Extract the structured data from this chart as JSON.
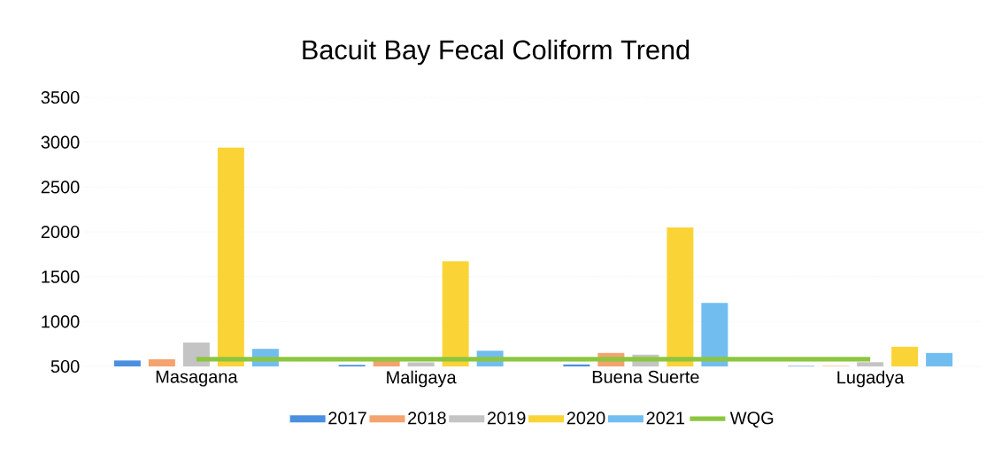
{
  "chart_data": {
    "type": "bar",
    "title": "Bacuit Bay Fecal Coliform Trend",
    "categories": [
      "Masagana",
      "Maligaya",
      "Buena Suerte",
      "Lugadya"
    ],
    "series": [
      {
        "name": "2017",
        "color": "#4a8fe0",
        "values": [
          566,
          517,
          522,
          505
        ]
      },
      {
        "name": "2018",
        "color": "#f4a26e",
        "values": [
          580,
          585,
          650,
          505
        ]
      },
      {
        "name": "2019",
        "color": "#c4c4c4",
        "values": [
          766,
          545,
          631,
          547
        ]
      },
      {
        "name": "2020",
        "color": "#fad437",
        "values": [
          2941,
          1671,
          2049,
          719
        ]
      },
      {
        "name": "2021",
        "color": "#72bdf0",
        "values": [
          696,
          675,
          1209,
          650
        ]
      },
      {
        "name": "WQG",
        "type": "line",
        "color": "#8cc63f",
        "values": [
          580,
          580,
          580,
          580
        ]
      }
    ],
    "ylim": [
      500,
      3500
    ],
    "yticks": [
      500,
      1000,
      1500,
      2000,
      2500,
      3000,
      3500
    ],
    "grid": "y",
    "legend": "bottom",
    "marker": "none"
  }
}
